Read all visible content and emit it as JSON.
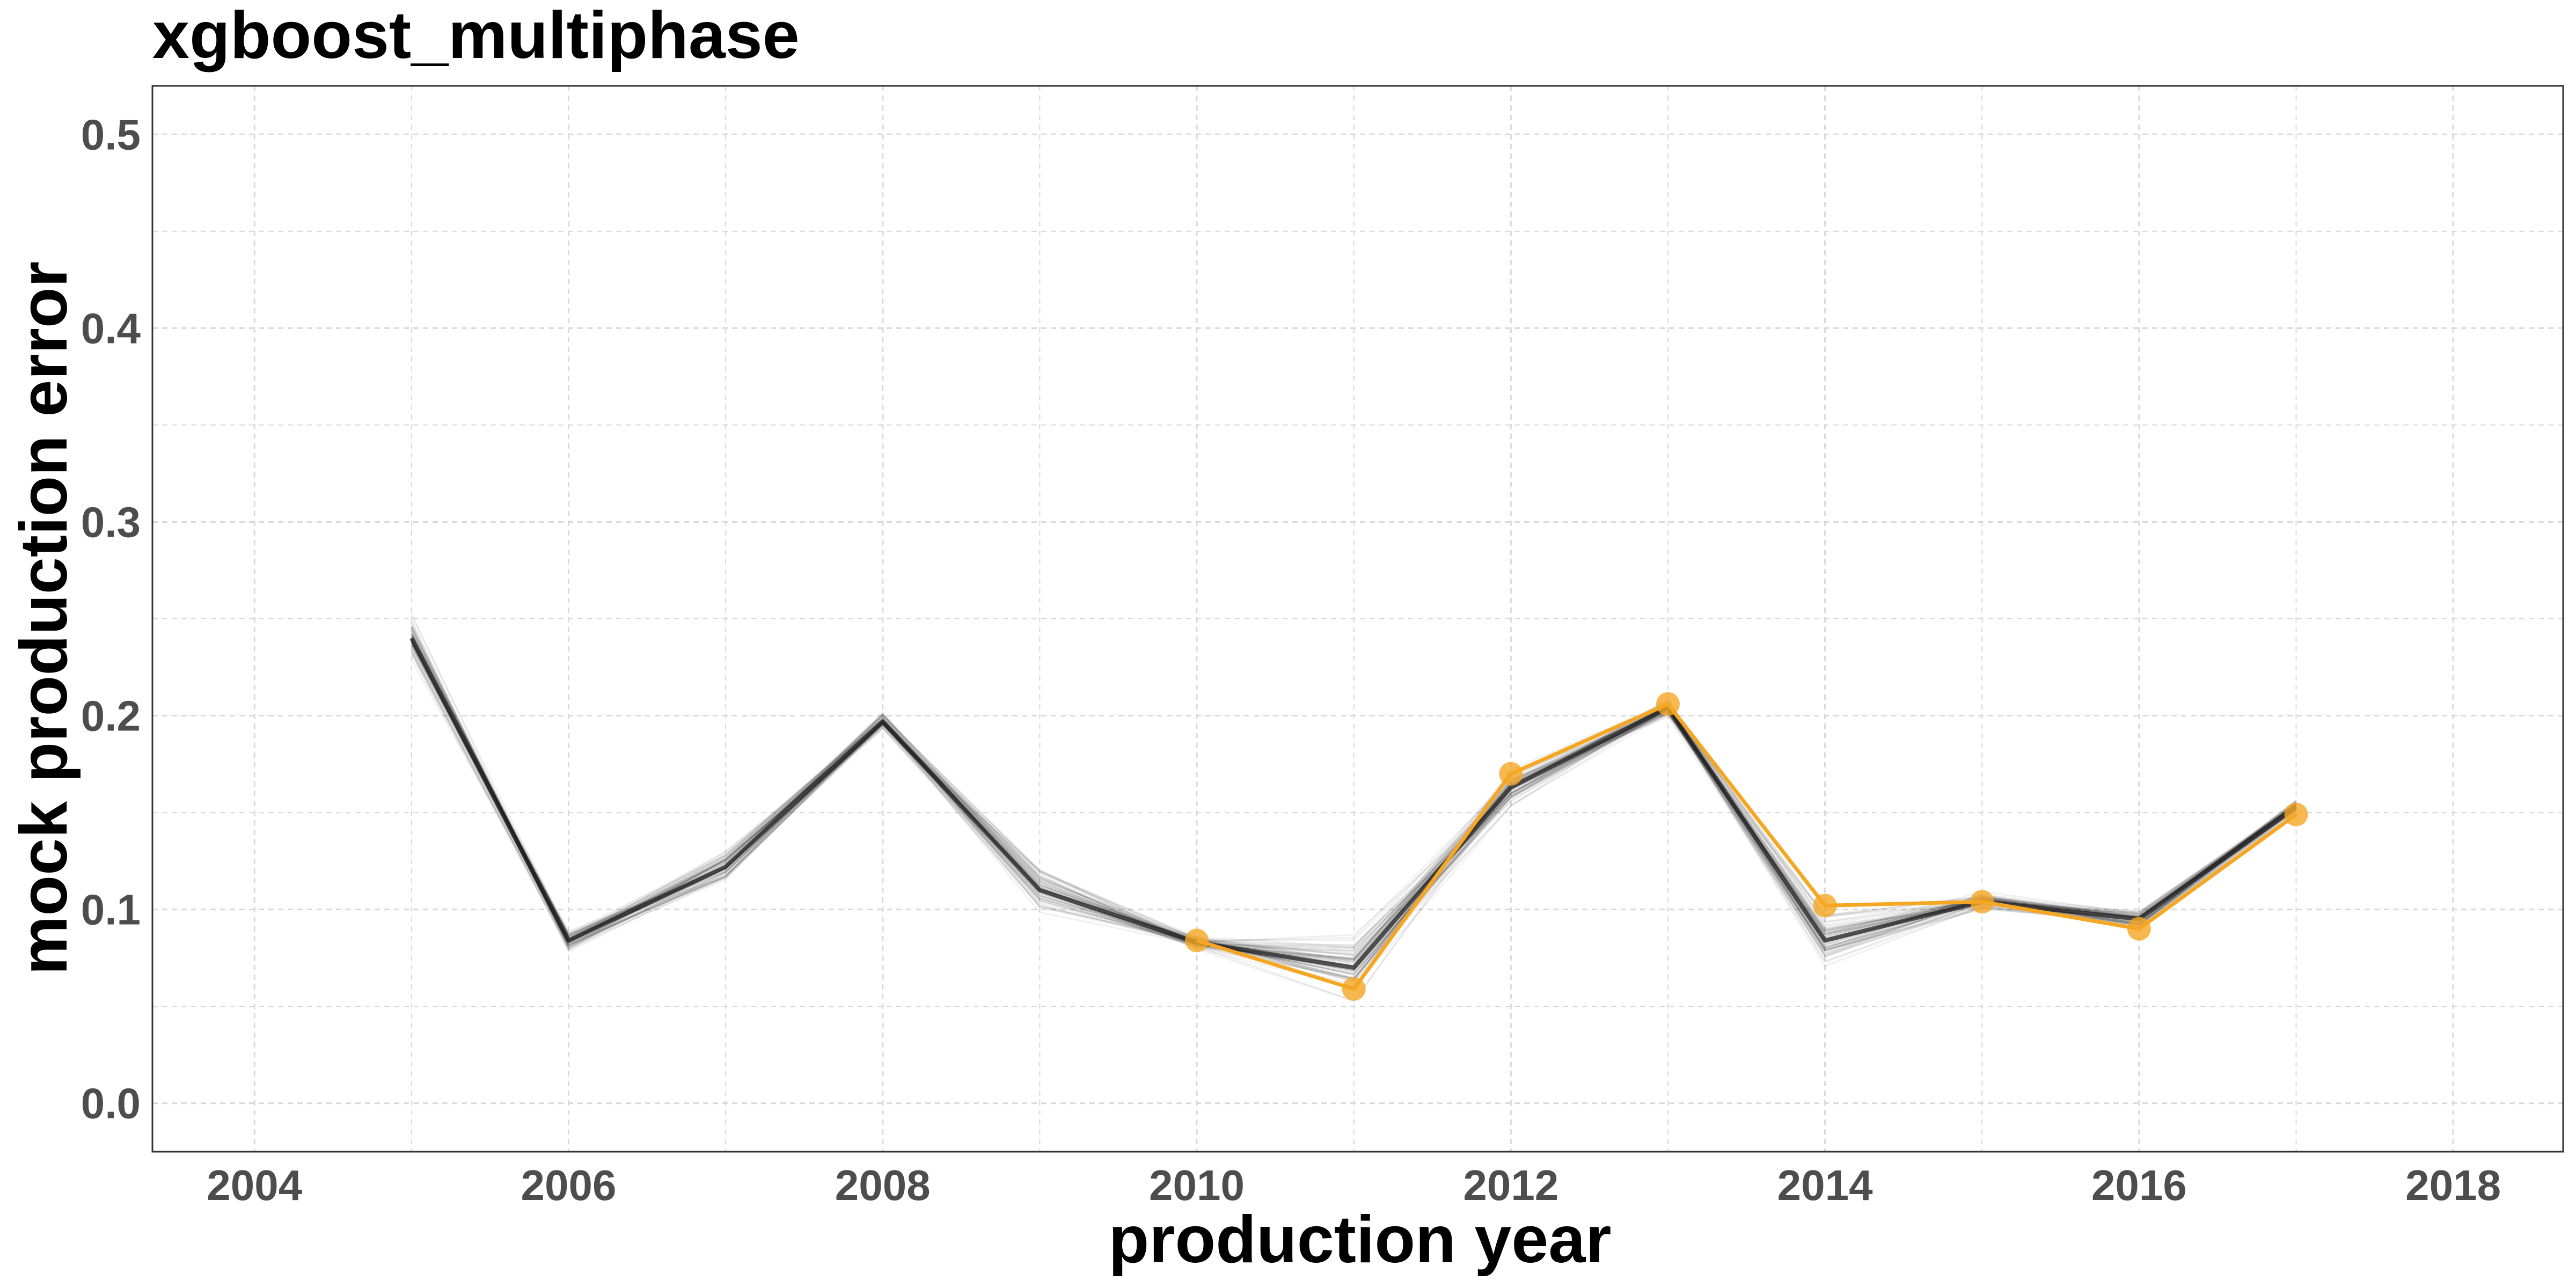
{
  "chart_data": {
    "type": "line",
    "title": "xgboost_multiphase",
    "xlabel": "production year",
    "ylabel": "mock production error",
    "xlim": [
      2003.35,
      2018.7
    ],
    "ylim": [
      -0.025,
      0.525
    ],
    "x_ticks": [
      "2004",
      "2006",
      "2008",
      "2010",
      "2012",
      "2014",
      "2016",
      "2018"
    ],
    "y_ticks": [
      "0.0",
      "0.1",
      "0.2",
      "0.3",
      "0.4",
      "0.5"
    ],
    "grid": true,
    "legend": "none",
    "colors": {
      "highlight": "#f5a623",
      "ensemble": "#000000",
      "grid": "#d9d9d9",
      "tick_label": "#4d4d4d",
      "panel_border": "#333333"
    },
    "ensemble_series": {
      "x": [
        2005,
        2006,
        2007,
        2008,
        2009,
        2010,
        2011,
        2012,
        2013,
        2014,
        2015,
        2016,
        2017
      ],
      "y": [
        0.24,
        0.084,
        0.122,
        0.197,
        0.11,
        0.083,
        0.07,
        0.163,
        0.204,
        0.084,
        0.104,
        0.095,
        0.153
      ],
      "spread": [
        0.014,
        0.008,
        0.01,
        0.006,
        0.016,
        0.004,
        0.02,
        0.014,
        0.006,
        0.016,
        0.006,
        0.006,
        0.006
      ]
    },
    "series": [
      {
        "x": [
          2010,
          2011,
          2012,
          2013,
          2014,
          2015,
          2016,
          2017
        ],
        "y": [
          0.084,
          0.059,
          0.17,
          0.206,
          0.102,
          0.104,
          0.09,
          0.149
        ]
      }
    ]
  }
}
